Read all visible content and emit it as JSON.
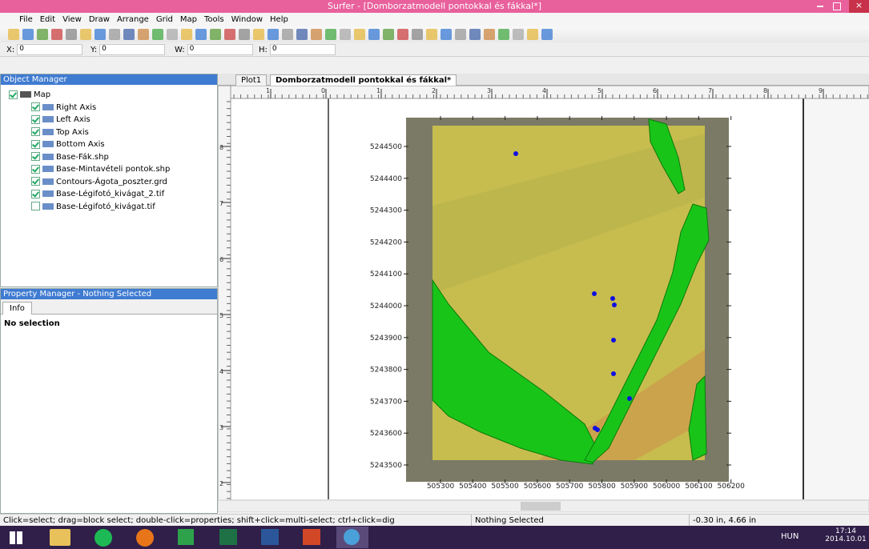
{
  "window": {
    "title": "Surfer - [Domborzatmodell pontokkal és fákkal*]"
  },
  "menu": [
    "File",
    "Edit",
    "View",
    "Draw",
    "Arrange",
    "Grid",
    "Map",
    "Tools",
    "Window",
    "Help"
  ],
  "coords": [
    {
      "label": "X:",
      "value": "0"
    },
    {
      "label": "Y:",
      "value": "0"
    },
    {
      "label": "W:",
      "value": "0"
    },
    {
      "label": "H:",
      "value": "0"
    }
  ],
  "object_manager": {
    "title": "Object Manager",
    "items": [
      {
        "text": "Map",
        "level": 0,
        "checked": true
      },
      {
        "text": "Right Axis",
        "level": 1,
        "checked": true
      },
      {
        "text": "Left Axis",
        "level": 1,
        "checked": true
      },
      {
        "text": "Top Axis",
        "level": 1,
        "checked": true
      },
      {
        "text": "Bottom Axis",
        "level": 1,
        "checked": true
      },
      {
        "text": "Base-Fák.shp",
        "level": 1,
        "checked": true
      },
      {
        "text": "Base-Mintavételi pontok.shp",
        "level": 1,
        "checked": true
      },
      {
        "text": "Contours-Ágota_poszter.grd",
        "level": 1,
        "checked": true
      },
      {
        "text": "Base-Légifotó_kivágat_2.tif",
        "level": 1,
        "checked": true
      },
      {
        "text": "Base-Légifotó_kivágat.tif",
        "level": 1,
        "checked": false
      }
    ]
  },
  "property_manager": {
    "title": "Property Manager - Nothing Selected",
    "tab": "Info",
    "content": "No selection"
  },
  "tabs": [
    "Plot1",
    "Domborzatmodell pontokkal és fákkal*"
  ],
  "rulers": {
    "top": [
      "1",
      "0",
      "1",
      "2",
      "3",
      "4",
      "5",
      "6",
      "7",
      "8",
      "9"
    ],
    "left": [
      "8",
      "7",
      "6",
      "5",
      "4",
      "3",
      "2"
    ]
  },
  "map": {
    "y_labels": [
      "5244500",
      "5244400",
      "5244300",
      "5244200",
      "5244100",
      "5244000",
      "5243900",
      "5243800",
      "5243700",
      "5243600",
      "5243500"
    ],
    "x_labels": [
      "505300",
      "505400",
      "505500",
      "505600",
      "505700",
      "505800",
      "505900",
      "506000",
      "506100",
      "506200"
    ]
  },
  "status": {
    "hint": "Click=select; drag=block select; double-click=properties; shift+click=multi-select; ctrl+click=dig",
    "selection": "Nothing Selected",
    "position": "-0.30 in, 4.66 in"
  },
  "taskbar": {
    "language": "HUN",
    "time": "17:14",
    "date": "2014.10.01"
  }
}
